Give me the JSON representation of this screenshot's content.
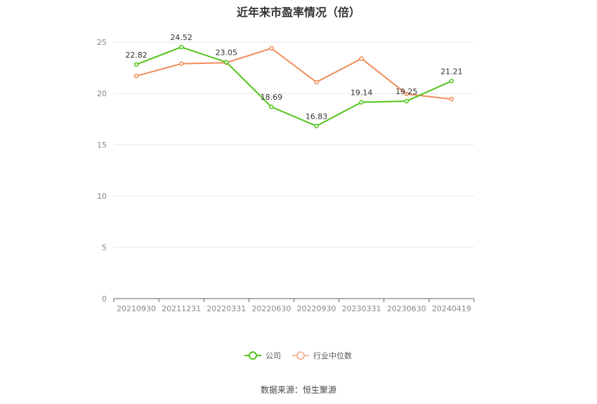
{
  "chart_data": {
    "type": "line",
    "title": "近年来市盈率情况（倍）",
    "categories": [
      "20210930",
      "20211231",
      "20220331",
      "20220630",
      "20220930",
      "20230331",
      "20230630",
      "20240419"
    ],
    "series": [
      {
        "name": "公司",
        "color": "#52c41a",
        "values": [
          22.82,
          24.52,
          23.05,
          18.69,
          16.83,
          19.14,
          19.25,
          21.21
        ],
        "labels": [
          "22.82",
          "24.52",
          "23.05",
          "18.69",
          "16.83",
          "19.14",
          "19.25",
          "21.21"
        ]
      },
      {
        "name": "行业中位数",
        "color": "#f08c5a",
        "values": [
          21.7,
          22.9,
          23.0,
          24.4,
          21.1,
          23.4,
          19.95,
          19.45
        ]
      }
    ],
    "ylim": [
      0,
      25
    ],
    "yticks": [
      "0",
      "5",
      "10",
      "15",
      "20",
      "25"
    ],
    "grid": true,
    "legend": "bottom-center"
  },
  "source": "数据来源：恒生聚源"
}
